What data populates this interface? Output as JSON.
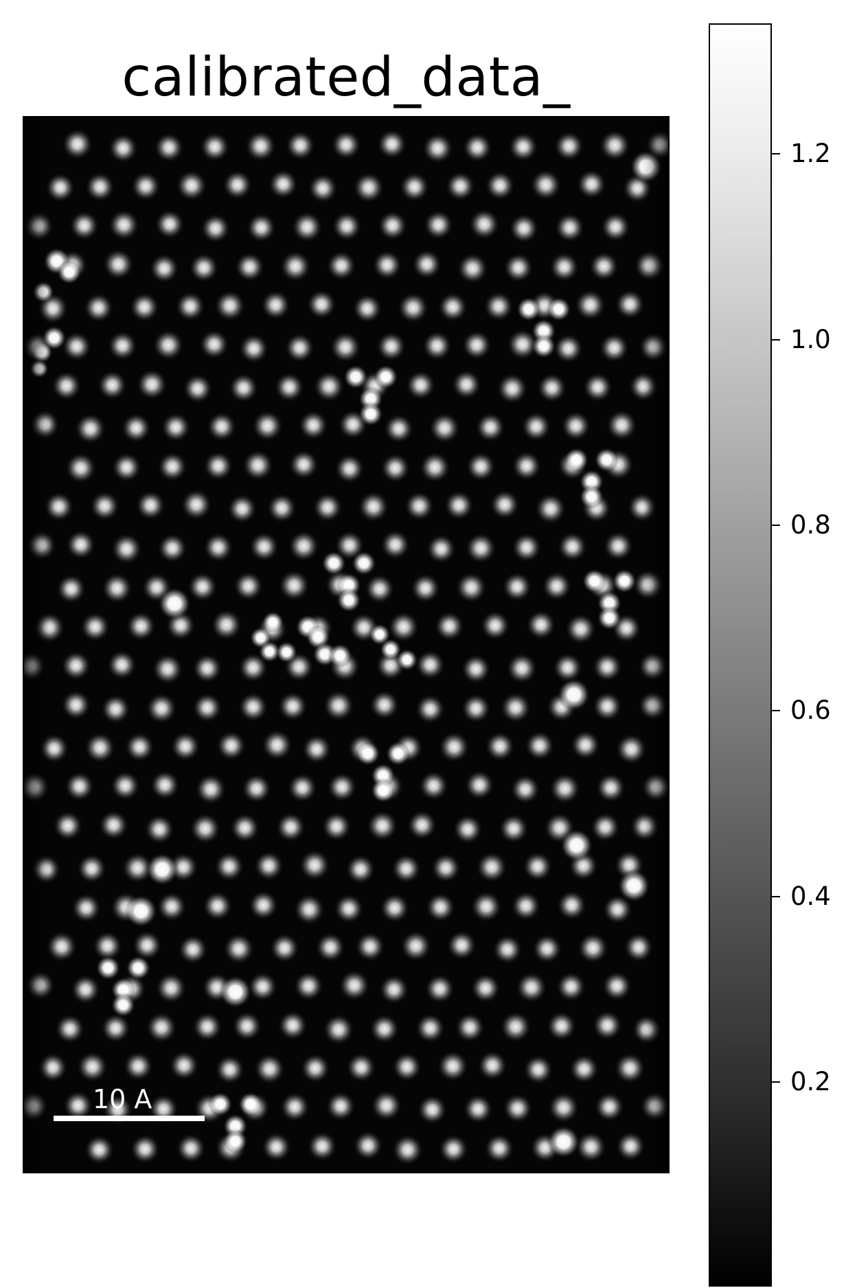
{
  "figure": {
    "title": "calibrated_data_"
  },
  "image": {
    "description_icon": "atomic-lattice-image",
    "scalebar": {
      "label": "10 A"
    }
  },
  "colorbar": {
    "ticks": [
      {
        "label": "0.2",
        "value": 0.2
      },
      {
        "label": "0.4",
        "value": 0.4
      },
      {
        "label": "0.6",
        "value": 0.6
      },
      {
        "label": "0.8",
        "value": 0.8
      },
      {
        "label": "1.0",
        "value": 1.0
      },
      {
        "label": "1.2",
        "value": 1.2
      }
    ],
    "range": [
      0.02,
      1.33
    ]
  }
}
